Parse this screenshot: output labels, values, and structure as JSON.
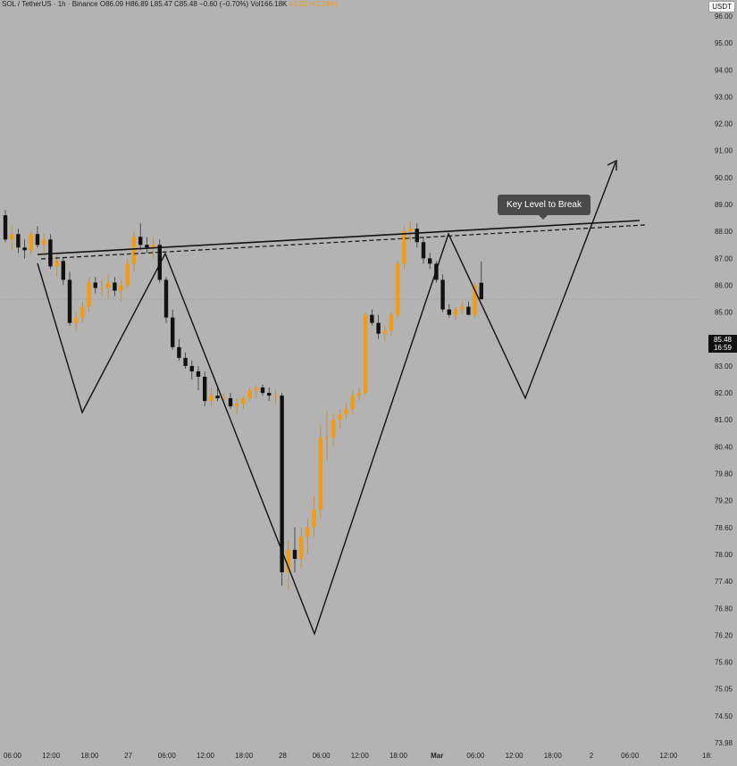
{
  "header": {
    "symbol_line": "SOL / TetherUS · 1h · Binance",
    "ohlc": "O86.09 H86.89 L85.47 C85.48 −0.60 (−0.70%)",
    "volume": "Vol166.18K",
    "change_badge": "+1.02 (+1.24%)"
  },
  "currency_label": "USDT",
  "last_price": {
    "price": "85.48",
    "countdown": "16:59"
  },
  "annotation": {
    "text": "Key Level to Break"
  },
  "colors": {
    "background": "#b3b3b3",
    "up_candle": "#f39c12",
    "down_candle": "#111111",
    "pattern_line": "#111111"
  },
  "chart_data": {
    "type": "candlestick",
    "interval": "1h",
    "y_ticks": [
      "96.00",
      "95.00",
      "94.00",
      "93.00",
      "92.00",
      "91.00",
      "90.00",
      "89.00",
      "88.00",
      "87.00",
      "86.00",
      "85.00",
      "84.00",
      "83.00",
      "82.00",
      "81.00",
      "80.40",
      "79.80",
      "79.20",
      "78.60",
      "78.00",
      "77.40",
      "76.80",
      "76.20",
      "75.60",
      "75.05",
      "74.50",
      "73.98"
    ],
    "x_ticks": [
      "06:00",
      "12:00",
      "18:00",
      "27",
      "06:00",
      "12:00",
      "18:00",
      "28",
      "06:00",
      "12:00",
      "18:00",
      "Mar",
      "06:00",
      "12:00",
      "18:00",
      "2",
      "06:00",
      "12:00",
      "18:"
    ],
    "candles": [
      [
        88.6,
        88.8,
        87.6,
        87.7
      ],
      [
        87.7,
        88.2,
        87.3,
        87.9
      ],
      [
        87.9,
        88.1,
        87.2,
        87.4
      ],
      [
        87.4,
        87.7,
        87.0,
        87.3
      ],
      [
        87.3,
        88.0,
        87.1,
        87.9
      ],
      [
        87.9,
        88.2,
        87.4,
        87.5
      ],
      [
        87.5,
        87.9,
        87.2,
        87.7
      ],
      [
        87.7,
        87.9,
        86.6,
        86.7
      ],
      [
        86.7,
        87.1,
        86.3,
        86.9
      ],
      [
        86.9,
        87.0,
        86.0,
        86.2
      ],
      [
        86.2,
        86.5,
        84.5,
        84.6
      ],
      [
        84.6,
        85.0,
        84.3,
        84.8
      ],
      [
        84.8,
        85.4,
        84.6,
        85.2
      ],
      [
        85.2,
        86.3,
        85.0,
        86.1
      ],
      [
        86.1,
        86.3,
        85.7,
        85.9
      ],
      [
        85.9,
        86.2,
        85.6,
        85.9
      ],
      [
        85.9,
        86.4,
        85.5,
        86.1
      ],
      [
        86.1,
        86.3,
        85.6,
        85.8
      ],
      [
        85.8,
        86.2,
        85.4,
        86.0
      ],
      [
        86.0,
        87.0,
        85.9,
        86.8
      ],
      [
        86.8,
        88.0,
        86.5,
        87.8
      ],
      [
        87.8,
        88.3,
        87.3,
        87.5
      ],
      [
        87.5,
        87.8,
        87.2,
        87.4
      ],
      [
        87.4,
        87.8,
        87.0,
        87.5
      ],
      [
        87.5,
        87.7,
        86.1,
        86.2
      ],
      [
        86.2,
        86.3,
        84.6,
        84.8
      ],
      [
        84.8,
        85.1,
        83.6,
        83.7
      ],
      [
        83.7,
        84.0,
        83.2,
        83.3
      ],
      [
        83.3,
        83.5,
        82.9,
        83.0
      ],
      [
        83.0,
        83.2,
        82.5,
        82.8
      ],
      [
        82.8,
        83.0,
        82.1,
        82.6
      ],
      [
        82.6,
        82.8,
        81.5,
        81.7
      ],
      [
        81.7,
        82.2,
        81.5,
        81.9
      ],
      [
        81.9,
        82.2,
        81.7,
        81.8
      ],
      [
        81.8,
        82.0,
        81.6,
        81.8
      ],
      [
        81.8,
        82.0,
        81.4,
        81.5
      ],
      [
        81.5,
        81.8,
        81.2,
        81.6
      ],
      [
        81.6,
        81.9,
        81.4,
        81.8
      ],
      [
        81.8,
        82.2,
        81.7,
        82.1
      ],
      [
        82.1,
        82.3,
        81.8,
        82.2
      ],
      [
        82.2,
        82.3,
        81.9,
        82.0
      ],
      [
        82.0,
        82.2,
        81.7,
        81.9
      ],
      [
        81.9,
        82.1,
        81.6,
        81.9
      ],
      [
        81.9,
        82.0,
        77.3,
        77.6
      ],
      [
        77.6,
        78.3,
        77.2,
        78.1
      ],
      [
        78.1,
        78.6,
        77.6,
        77.9
      ],
      [
        77.9,
        78.6,
        77.7,
        78.4
      ],
      [
        78.4,
        78.8,
        78.0,
        78.6
      ],
      [
        78.6,
        79.3,
        78.4,
        79.0
      ],
      [
        79.0,
        80.9,
        78.8,
        80.6
      ],
      [
        80.6,
        81.3,
        80.1,
        80.6
      ],
      [
        80.6,
        81.2,
        80.4,
        81.0
      ],
      [
        81.0,
        81.4,
        80.8,
        81.2
      ],
      [
        81.2,
        81.6,
        81.0,
        81.4
      ],
      [
        81.4,
        82.1,
        81.2,
        81.9
      ],
      [
        81.9,
        82.2,
        81.7,
        82.0
      ],
      [
        82.0,
        85.0,
        81.9,
        84.9
      ],
      [
        84.9,
        85.1,
        84.5,
        84.6
      ],
      [
        84.6,
        84.9,
        84.0,
        84.2
      ],
      [
        84.2,
        84.5,
        83.9,
        84.3
      ],
      [
        84.3,
        85.0,
        84.1,
        84.9
      ],
      [
        84.9,
        86.9,
        84.8,
        86.8
      ],
      [
        86.8,
        88.2,
        86.6,
        88.0
      ],
      [
        88.0,
        88.4,
        87.6,
        88.1
      ],
      [
        88.1,
        88.3,
        87.4,
        87.6
      ],
      [
        87.6,
        87.8,
        86.8,
        87.0
      ],
      [
        87.0,
        87.2,
        86.6,
        86.8
      ],
      [
        86.8,
        86.9,
        86.1,
        86.2
      ],
      [
        86.2,
        86.4,
        85.0,
        85.1
      ],
      [
        85.1,
        85.3,
        84.8,
        84.9
      ],
      [
        84.9,
        85.2,
        84.7,
        85.1
      ],
      [
        85.1,
        85.4,
        84.9,
        85.2
      ],
      [
        85.2,
        85.4,
        84.9,
        84.9
      ],
      [
        84.9,
        86.1,
        84.8,
        86.0
      ],
      [
        86.09,
        86.89,
        85.47,
        85.48
      ]
    ],
    "last_close": 85.48
  }
}
